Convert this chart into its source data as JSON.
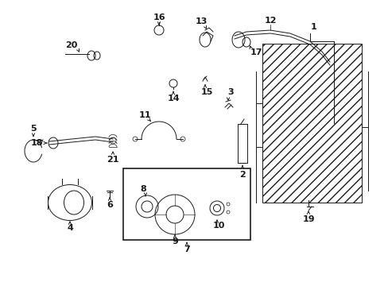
{
  "bg_color": "#ffffff",
  "fig_width": 4.89,
  "fig_height": 3.6,
  "dpi": 100,
  "label_fs": 8,
  "lw": 0.7,
  "part_color": "#1a1a1a"
}
